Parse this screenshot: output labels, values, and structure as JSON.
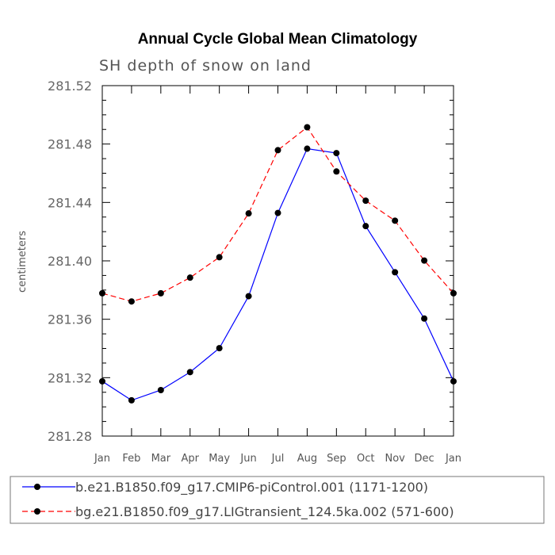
{
  "chart_data": {
    "type": "line",
    "title": "Annual Cycle Global Mean Climatology",
    "subtitle": "SH depth of snow on land",
    "xlabel": "",
    "ylabel": "centimeters",
    "ylim": [
      281.28,
      281.52
    ],
    "y_ticks": [
      "281.28",
      "281.32",
      "281.36",
      "281.40",
      "281.44",
      "281.48",
      "281.52"
    ],
    "y_tick_values": [
      281.28,
      281.32,
      281.36,
      281.4,
      281.44,
      281.48,
      281.52
    ],
    "categories": [
      "Jan",
      "Feb",
      "Mar",
      "Apr",
      "May",
      "Jun",
      "Jul",
      "Aug",
      "Sep",
      "Oct",
      "Nov",
      "Dec",
      "Jan"
    ],
    "series": [
      {
        "name": "b.e21.B1850.f09_g17.CMIP6-piControl.001 (1171-1200)",
        "color": "#0000ff",
        "dash": "solid",
        "values": [
          281.3175,
          281.3045,
          281.3115,
          281.3238,
          281.3402,
          281.3758,
          281.4328,
          281.4768,
          281.4738,
          281.4238,
          281.3922,
          281.3605,
          281.3175
        ]
      },
      {
        "name": "bg.e21.B1850.f09_g17.LIGtransient_124.5ka.002 (571-600)",
        "color": "#ff0000",
        "dash": "dashed",
        "values": [
          281.3778,
          281.3722,
          281.3778,
          281.3885,
          281.4025,
          281.4325,
          281.4758,
          281.4915,
          281.4612,
          281.4412,
          281.4275,
          281.4002,
          281.3778
        ]
      }
    ],
    "grid": false,
    "legend_position": "bottom"
  }
}
